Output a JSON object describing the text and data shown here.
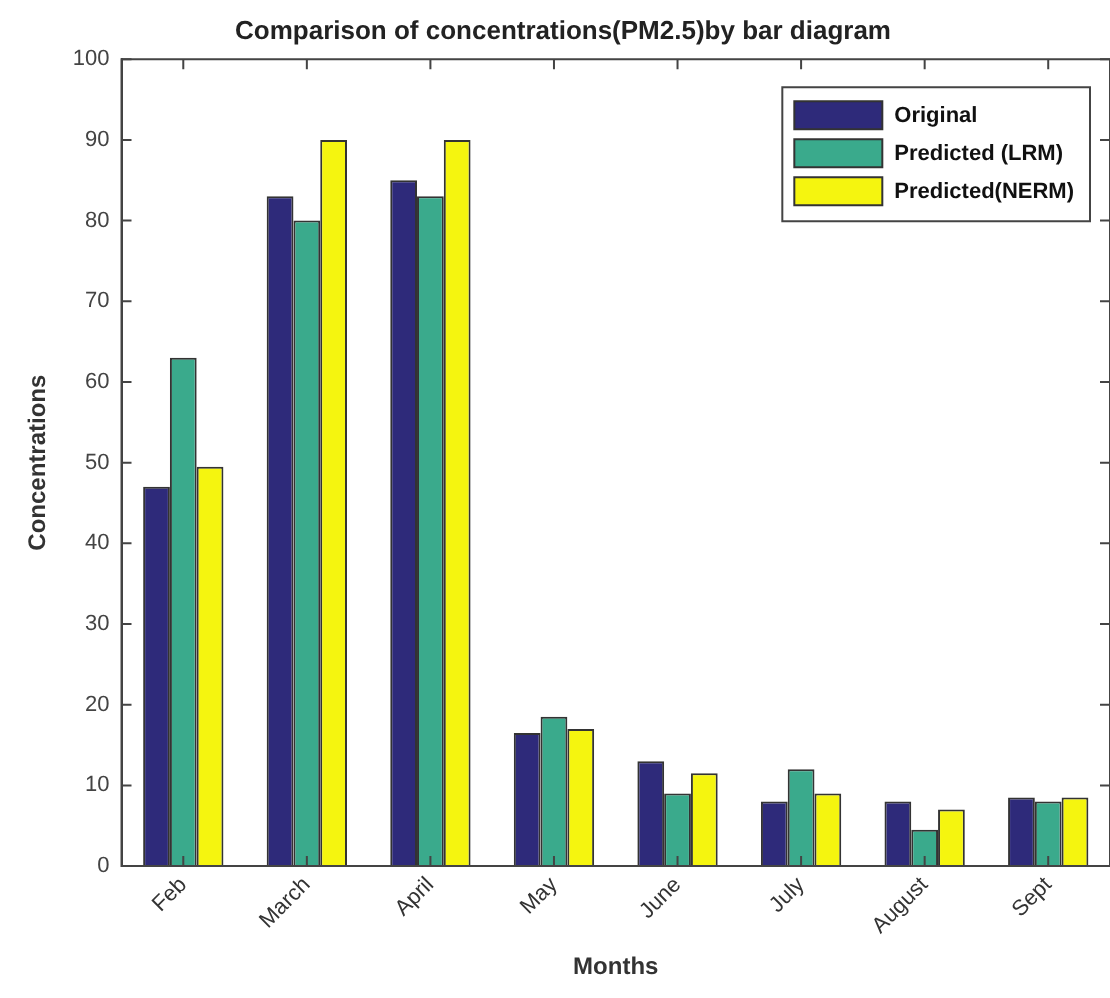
{
  "chart_data": {
    "type": "bar",
    "title": "Comparison of concentrations(PM2.5)by bar diagram",
    "xlabel": "Months",
    "ylabel": "Concentrations",
    "categories": [
      "Feb",
      "March",
      "April",
      "May",
      "June",
      "July",
      "August",
      "Sept"
    ],
    "series": [
      {
        "name": "Original",
        "color": "#2e2a7a",
        "values": [
          47,
          83,
          85,
          16.5,
          13,
          8,
          8,
          8.5
        ]
      },
      {
        "name": "Predicted (LRM)",
        "color": "#3aaa8c",
        "values": [
          63,
          80,
          83,
          18.5,
          9,
          12,
          4.5,
          8
        ]
      },
      {
        "name": "Predicted(NERM)",
        "color": "#f5f50f",
        "values": [
          49.5,
          90,
          90,
          17,
          11.5,
          9,
          7,
          8.5
        ]
      }
    ],
    "ylim": [
      0,
      100
    ],
    "yticks": [
      0,
      10,
      20,
      30,
      40,
      50,
      60,
      70,
      80,
      90,
      100
    ],
    "grid": false,
    "legend": "top right"
  }
}
